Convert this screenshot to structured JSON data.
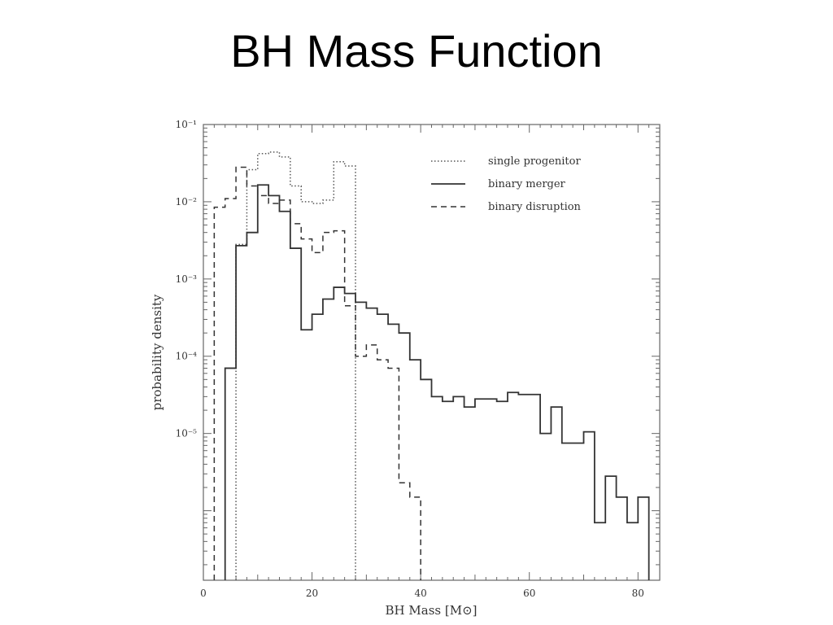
{
  "slide": {
    "title": "BH Mass Function"
  },
  "chart_data": {
    "type": "line",
    "title": "",
    "xlabel": "BH Mass [M⊙]",
    "ylabel": "probability density",
    "xlim": [
      0,
      84
    ],
    "ylim_log10": [
      -6.9,
      -1
    ],
    "yscale": "log",
    "grid": false,
    "legend_position": "top-right",
    "x_ticks": [
      0,
      20,
      40,
      60,
      80
    ],
    "x_tick_labels": [
      "0",
      "20",
      "40",
      "60",
      "80"
    ],
    "y_ticks": [
      -5,
      -4,
      -3,
      -2,
      -1
    ],
    "y_tick_labels": [
      "10⁻⁵",
      "10⁻⁴",
      "10⁻³",
      "10⁻²",
      "10⁻¹"
    ],
    "bin_width": 2,
    "series": [
      {
        "name": "single progenitor",
        "style": "dotted",
        "color": "#555555",
        "bins": [
          [
            6,
            0.0028
          ],
          [
            8,
            0.026
          ],
          [
            10,
            0.042
          ],
          [
            12,
            0.044
          ],
          [
            14,
            0.038
          ],
          [
            16,
            0.016
          ],
          [
            18,
            0.01
          ],
          [
            20,
            0.0095
          ],
          [
            22,
            0.0105
          ],
          [
            24,
            0.033
          ],
          [
            26,
            0.029
          ]
        ]
      },
      {
        "name": "binary merger",
        "style": "solid",
        "color": "#333333",
        "bins": [
          [
            4,
            7e-05
          ],
          [
            6,
            0.0027
          ],
          [
            8,
            0.004
          ],
          [
            10,
            0.0165
          ],
          [
            12,
            0.012
          ],
          [
            14,
            0.0075
          ],
          [
            16,
            0.0025
          ],
          [
            18,
            0.00022
          ],
          [
            20,
            0.00035
          ],
          [
            22,
            0.00055
          ],
          [
            24,
            0.00078
          ],
          [
            26,
            0.00065
          ],
          [
            28,
            0.0005
          ],
          [
            30,
            0.00042
          ],
          [
            32,
            0.00035
          ],
          [
            34,
            0.00026
          ],
          [
            36,
            0.0002
          ],
          [
            38,
            9e-05
          ],
          [
            40,
            5e-05
          ],
          [
            42,
            3e-05
          ],
          [
            44,
            2.6e-05
          ],
          [
            46,
            3e-05
          ],
          [
            48,
            2.2e-05
          ],
          [
            50,
            2.8e-05
          ],
          [
            52,
            2.8e-05
          ],
          [
            54,
            2.6e-05
          ],
          [
            56,
            3.4e-05
          ],
          [
            58,
            3.2e-05
          ],
          [
            60,
            3.2e-05
          ],
          [
            62,
            1e-05
          ],
          [
            64,
            2.2e-05
          ],
          [
            66,
            7.5e-06
          ],
          [
            68,
            7.5e-06
          ],
          [
            70,
            1.05e-05
          ],
          [
            72,
            7e-07
          ],
          [
            74,
            2.8e-06
          ],
          [
            76,
            1.5e-06
          ],
          [
            78,
            7e-07
          ],
          [
            80,
            1.5e-06
          ]
        ]
      },
      {
        "name": "binary disruption",
        "style": "dashed",
        "color": "#333333",
        "bins": [
          [
            2,
            0.0085
          ],
          [
            4,
            0.011
          ],
          [
            6,
            0.028
          ],
          [
            8,
            0.016
          ],
          [
            10,
            0.012
          ],
          [
            12,
            0.0095
          ],
          [
            14,
            0.0105
          ],
          [
            16,
            0.0052
          ],
          [
            18,
            0.0033
          ],
          [
            20,
            0.0022
          ],
          [
            22,
            0.004
          ],
          [
            24,
            0.0042
          ],
          [
            26,
            0.00045
          ],
          [
            28,
            0.0001
          ],
          [
            30,
            0.00014
          ],
          [
            32,
            9e-05
          ],
          [
            34,
            7e-05
          ],
          [
            36,
            2.3e-06
          ],
          [
            38,
            1.5e-06
          ]
        ]
      }
    ]
  }
}
